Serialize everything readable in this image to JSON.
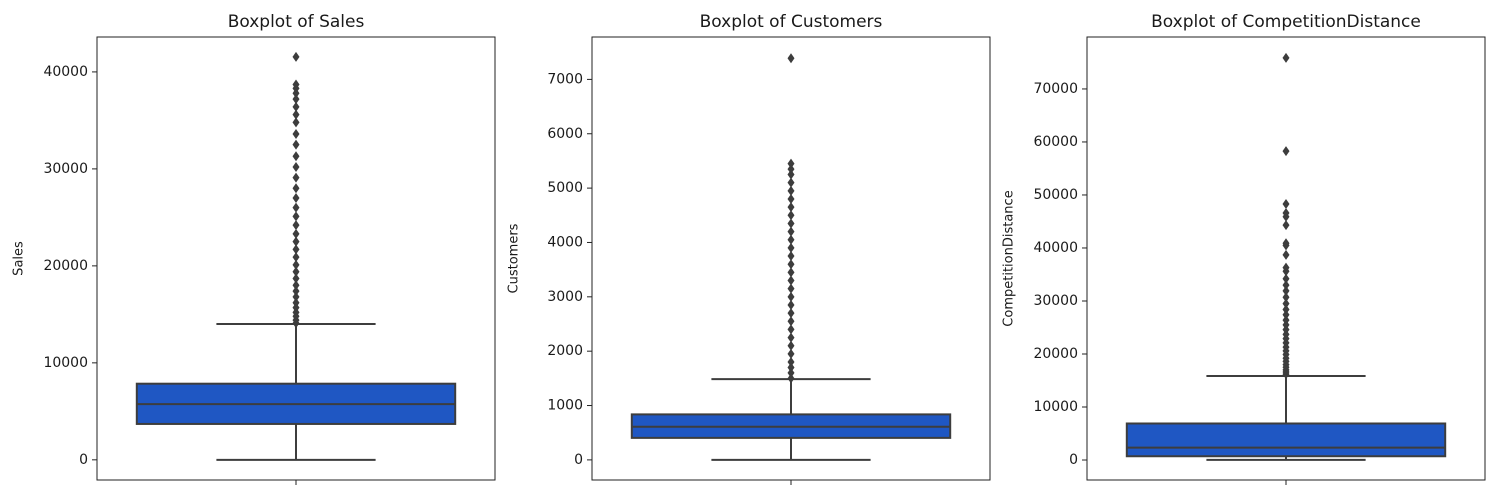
{
  "chart_data": [
    {
      "type": "box",
      "title": "Boxplot of Sales",
      "ylabel": "Sales",
      "color": "#1f57c3",
      "categories": [
        null
      ],
      "ylim": [
        -2080,
        43600
      ],
      "yticks": [
        0,
        10000,
        20000,
        30000,
        40000
      ],
      "q1": 3700,
      "median": 5750,
      "q3": 7850,
      "whisker_low": 0,
      "whisker_high": 14000,
      "outliers": [
        14100,
        14400,
        14800,
        15200,
        15700,
        16200,
        16800,
        17400,
        18000,
        18700,
        19400,
        20100,
        20900,
        21700,
        22500,
        23300,
        24200,
        25100,
        26000,
        27000,
        28000,
        29100,
        30200,
        31300,
        32500,
        33600,
        34800,
        35600,
        36400,
        37200,
        37800,
        38300,
        38700,
        41551
      ]
    },
    {
      "type": "box",
      "title": "Boxplot of Customers",
      "ylabel": "Customers",
      "color": "#1f57c3",
      "categories": [
        null
      ],
      "ylim": [
        -370,
        7780
      ],
      "yticks": [
        0,
        1000,
        2000,
        3000,
        4000,
        5000,
        6000,
        7000
      ],
      "q1": 405,
      "median": 609,
      "q3": 837,
      "whisker_low": 0,
      "whisker_high": 1485,
      "outliers": [
        1500,
        1600,
        1700,
        1800,
        1950,
        2100,
        2250,
        2400,
        2550,
        2700,
        2850,
        3000,
        3150,
        3300,
        3450,
        3600,
        3750,
        3900,
        4050,
        4200,
        4350,
        4500,
        4650,
        4800,
        4950,
        5100,
        5250,
        5350,
        5450,
        7388
      ]
    },
    {
      "type": "box",
      "title": "Boxplot of CompetitionDistance",
      "ylabel": "CompetitionDistance",
      "color": "#1f57c3",
      "categories": [
        null
      ],
      "ylim": [
        -3770,
        79800
      ],
      "yticks": [
        0,
        10000,
        20000,
        30000,
        40000,
        50000,
        60000,
        70000
      ],
      "q1": 710,
      "median": 2330,
      "q3": 6890,
      "whisker_low": 20,
      "whisker_high": 15850,
      "outliers": [
        16200,
        16600,
        17000,
        17500,
        18000,
        18600,
        19200,
        19900,
        20600,
        21300,
        22100,
        22900,
        23700,
        24600,
        25500,
        26400,
        27400,
        28400,
        29500,
        30700,
        31900,
        33000,
        34200,
        35600,
        36300,
        38700,
        40500,
        40900,
        44300,
        45900,
        46600,
        48300,
        58260,
        75860
      ]
    }
  ]
}
